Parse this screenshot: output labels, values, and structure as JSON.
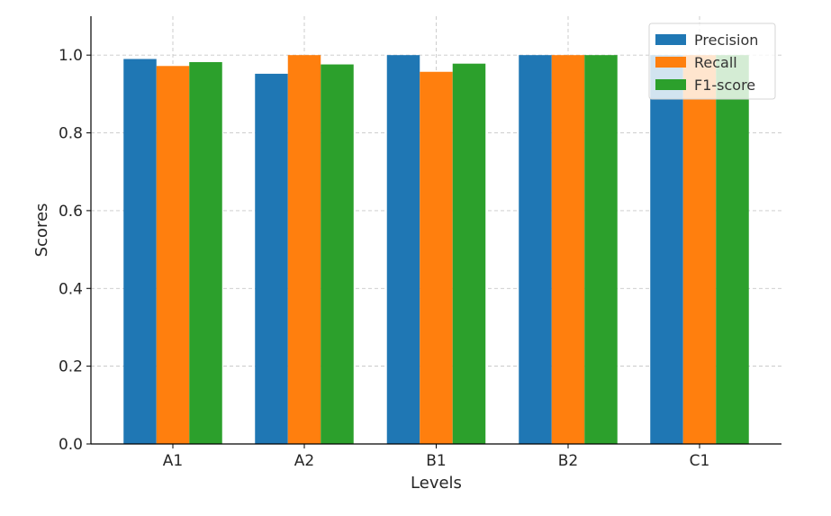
{
  "chart_data": {
    "type": "bar",
    "categories": [
      "A1",
      "A2",
      "B1",
      "B2",
      "C1"
    ],
    "series": [
      {
        "name": "Precision",
        "color": "#1f77b4",
        "values": [
          0.99,
          0.952,
          1.0,
          1.0,
          1.0
        ]
      },
      {
        "name": "Recall",
        "color": "#ff7f0e",
        "values": [
          0.972,
          1.0,
          0.957,
          1.0,
          1.0
        ]
      },
      {
        "name": "F1-score",
        "color": "#2ca02c",
        "values": [
          0.982,
          0.976,
          0.978,
          1.0,
          1.0
        ]
      }
    ],
    "title": "",
    "xlabel": "Levels",
    "ylabel": "Scores",
    "ylim": [
      0,
      1.1
    ],
    "yticks": [
      0.0,
      0.2,
      0.4,
      0.6,
      0.8,
      1.0
    ],
    "ytick_labels": [
      "0.0",
      "0.2",
      "0.4",
      "0.6",
      "0.8",
      "1.0"
    ],
    "grid": true,
    "legend_position": "top-right"
  }
}
